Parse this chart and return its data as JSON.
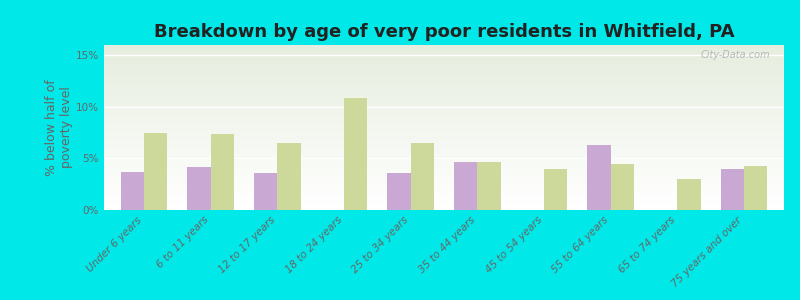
{
  "title": "Breakdown by age of very poor residents in Whitfield, PA",
  "ylabel": "% below half of\npoverty level",
  "categories": [
    "Under 6 years",
    "6 to 11 years",
    "12 to 17 years",
    "18 to 24 years",
    "25 to 34 years",
    "35 to 44 years",
    "45 to 54 years",
    "55 to 64 years",
    "65 to 74 years",
    "75 years and over"
  ],
  "whitfield_values": [
    3.7,
    4.2,
    3.6,
    0.0,
    3.6,
    4.7,
    0.0,
    6.3,
    0.0,
    4.0
  ],
  "pennsylvania_values": [
    7.5,
    7.4,
    6.5,
    10.9,
    6.5,
    4.7,
    4.0,
    4.5,
    3.0,
    4.3
  ],
  "whitfield_color": "#c9a8d4",
  "pennsylvania_color": "#cdd99a",
  "background_color": "#00e8e8",
  "ylim": [
    0,
    16
  ],
  "yticks": [
    0,
    5,
    10,
    15
  ],
  "ytick_labels": [
    "0%",
    "5%",
    "10%",
    "15%"
  ],
  "bar_width": 0.35,
  "title_fontsize": 13,
  "tick_fontsize": 7.5,
  "ylabel_fontsize": 9,
  "legend_fontsize": 9,
  "watermark": "City-Data.com"
}
